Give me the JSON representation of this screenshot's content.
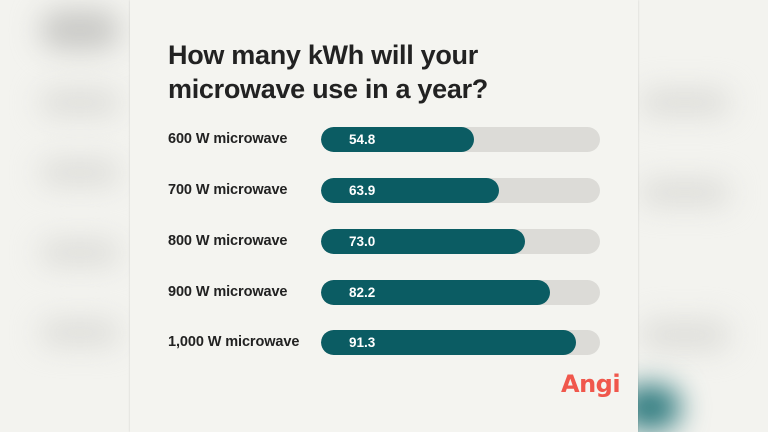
{
  "title": "How many kWh will your microwave use in a year?",
  "brand": {
    "logo_text": "Angi",
    "logo_color": "#f0574c",
    "bar_color": "#0b5c63",
    "track_color": "#dcdbd7"
  },
  "chart_data": {
    "type": "bar",
    "orientation": "horizontal",
    "title": "How many kWh will your microwave use in a year?",
    "categories": [
      "600 W microwave",
      "700 W microwave",
      "800 W microwave",
      "900 W microwave",
      "1,000 W microwave"
    ],
    "values": [
      54.8,
      63.9,
      73.0,
      82.2,
      91.3
    ],
    "value_labels": [
      "54.8",
      "63.9",
      "73.0",
      "82.2",
      "91.3"
    ],
    "unit": "kWh",
    "xlim": [
      0,
      100
    ],
    "grid": false,
    "legend": null
  }
}
